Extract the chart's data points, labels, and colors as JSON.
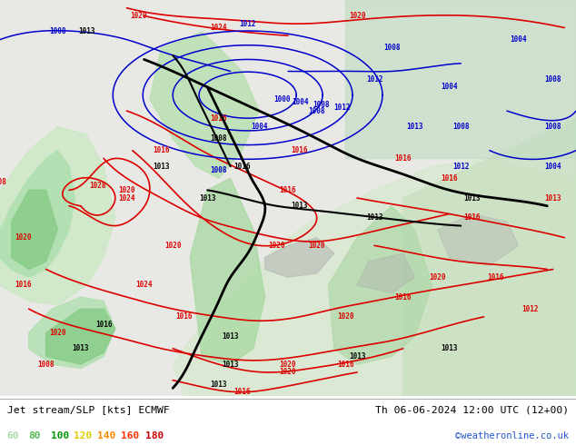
{
  "title_left": "Jet stream/SLP [kts] ECMWF",
  "title_right": "Th 06-06-2024 12:00 UTC (12+00)",
  "watermark": "©weatheronline.co.uk",
  "legend_values": [
    "60",
    "80",
    "100",
    "120",
    "140",
    "160",
    "180"
  ],
  "legend_colors": [
    "#aaddaa",
    "#55bb55",
    "#009900",
    "#ddcc00",
    "#ff8800",
    "#ff3300",
    "#cc0000"
  ],
  "bg_color": "#ffffff",
  "land_color": "#e8e8e8",
  "sea_color": "#d8ecd8",
  "jet_light_green": "#b8e8b0",
  "jet_med_green": "#88cc88",
  "jet_dark_green": "#44aa44",
  "jet_yellow": "#ddcc00",
  "jet_orange": "#ff8800",
  "jet_red": "#ff3300",
  "bottom_bar_color": "#ffffff",
  "bottom_bar_height": 0.11,
  "figsize": [
    6.34,
    4.9
  ],
  "dpi": 100,
  "red_isobar_color": "#dd0000",
  "blue_isobar_color": "#0000cc",
  "black_isobar_color": "#000000",
  "font_family": "monospace"
}
